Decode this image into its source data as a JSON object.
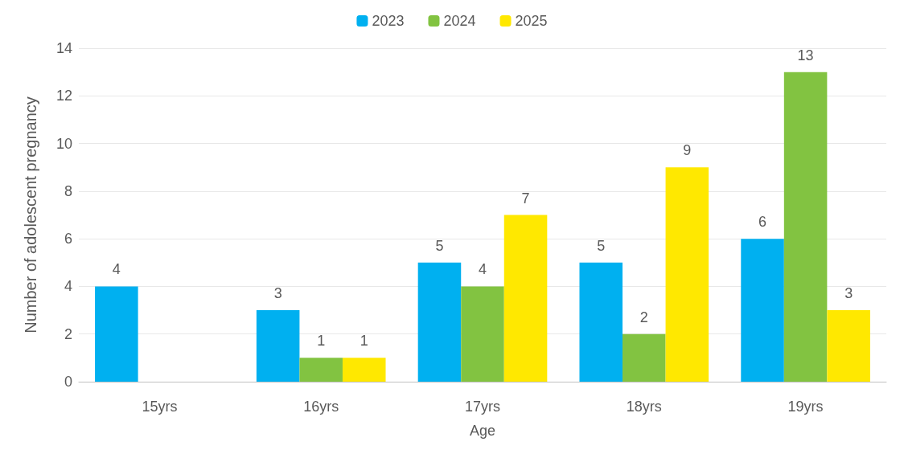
{
  "chart_data": {
    "type": "bar",
    "xlabel": "Age",
    "ylabel": "Number of adolescent pregnancy",
    "categories": [
      "15yrs",
      "16yrs",
      "17yrs",
      "18yrs",
      "19yrs"
    ],
    "series": [
      {
        "name": "2023",
        "color": "#00b0f0",
        "values": [
          4,
          3,
          5,
          5,
          6
        ]
      },
      {
        "name": "2024",
        "color": "#82c341",
        "values": [
          null,
          1,
          4,
          2,
          13
        ]
      },
      {
        "name": "2025",
        "color": "#ffe800",
        "values": [
          null,
          1,
          7,
          9,
          3
        ]
      }
    ],
    "ylim": [
      0,
      14
    ],
    "yticks": [
      0,
      2,
      4,
      6,
      8,
      10,
      12,
      14
    ],
    "grid": "y",
    "legend": "top",
    "data_labels": true
  }
}
